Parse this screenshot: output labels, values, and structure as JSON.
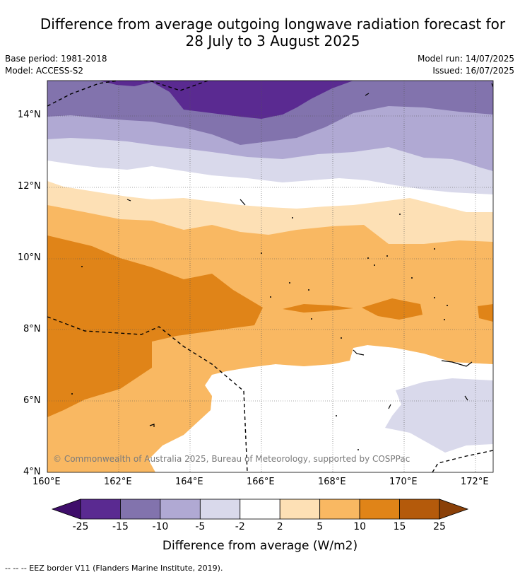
{
  "title_line1": "Difference from average outgoing longwave radiation forecast for",
  "title_line2": "28 July to 3 August 2025",
  "meta": {
    "base_period": "Base period: 1981-2018",
    "model": "Model: ACCESS-S2",
    "model_run": "Model run: 14/07/2025",
    "issued": "Issued: 16/07/2025"
  },
  "map": {
    "lat_labels": [
      "14°N",
      "12°N",
      "10°N",
      "8°N",
      "6°N",
      "4°N"
    ],
    "lon_labels": [
      "160°E",
      "162°E",
      "164°E",
      "166°E",
      "168°E",
      "170°E",
      "172°E"
    ],
    "copyright": "© Commonwealth of Australia 2025, Bureau of Meteorology, supported by COSPPac"
  },
  "colorbar": {
    "ticks": [
      "-25",
      "-15",
      "-10",
      "-5",
      "-2",
      "2",
      "5",
      "10",
      "15",
      "25"
    ],
    "colors": [
      "#3f0e6b",
      "#5a2a91",
      "#8273ad",
      "#b0a9d3",
      "#d9d9eb",
      "#ffffff",
      "#fde0b5",
      "#f9b862",
      "#e08418",
      "#b45a0b",
      "#8a4008"
    ],
    "label": "Difference from average (W/m2)"
  },
  "footer": "--  --  -- EEZ border V11 (Flanders Marine Institute, 2019)."
}
